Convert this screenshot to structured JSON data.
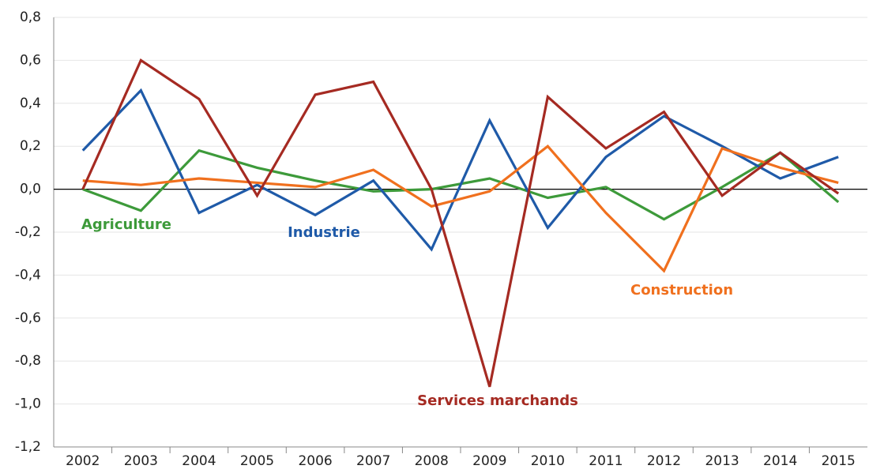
{
  "chart_data": {
    "type": "line",
    "categories": [
      "2002",
      "2003",
      "2004",
      "2005",
      "2006",
      "2007",
      "2008",
      "2009",
      "2010",
      "2011",
      "2012",
      "2013",
      "2014",
      "2015"
    ],
    "series": [
      {
        "name": "Agriculture",
        "color": "#3d9a3a",
        "values": [
          0.0,
          -0.1,
          0.18,
          0.1,
          0.04,
          -0.01,
          0.0,
          0.05,
          -0.04,
          0.01,
          -0.14,
          0.01,
          0.17,
          -0.06
        ]
      },
      {
        "name": "Industrie",
        "color": "#1f5aa8",
        "values": [
          0.18,
          0.46,
          -0.11,
          0.02,
          -0.12,
          0.04,
          -0.28,
          0.32,
          -0.18,
          0.15,
          0.34,
          0.2,
          0.05,
          0.15
        ]
      },
      {
        "name": "Construction",
        "color": "#f0701e",
        "values": [
          0.04,
          0.02,
          0.05,
          0.03,
          0.01,
          0.09,
          -0.08,
          -0.01,
          0.2,
          -0.11,
          -0.38,
          0.19,
          0.1,
          0.03
        ]
      },
      {
        "name": "Services marchands",
        "color": "#a52a22",
        "values": [
          0.0,
          0.6,
          0.42,
          -0.03,
          0.44,
          0.5,
          0.0,
          -0.92,
          0.43,
          0.19,
          0.36,
          -0.03,
          0.17,
          -0.02
        ]
      }
    ],
    "ylim": [
      -1.2,
      0.8
    ],
    "yticks": [
      {
        "value": 0.8,
        "label": "0,8"
      },
      {
        "value": 0.6,
        "label": "0,6"
      },
      {
        "value": 0.4,
        "label": "0,4"
      },
      {
        "value": 0.2,
        "label": "0,2"
      },
      {
        "value": 0,
        "label": "0,0"
      },
      {
        "value": -0.2,
        "label": "-0,2"
      },
      {
        "value": -0.4,
        "label": "-0,4"
      },
      {
        "value": -0.6,
        "label": "-0,6"
      },
      {
        "value": -0.8,
        "label": "-0,8"
      },
      {
        "value": -1.0,
        "label": "-1,0"
      },
      {
        "value": -1.2,
        "label": "-1,2"
      }
    ],
    "grid": true
  }
}
